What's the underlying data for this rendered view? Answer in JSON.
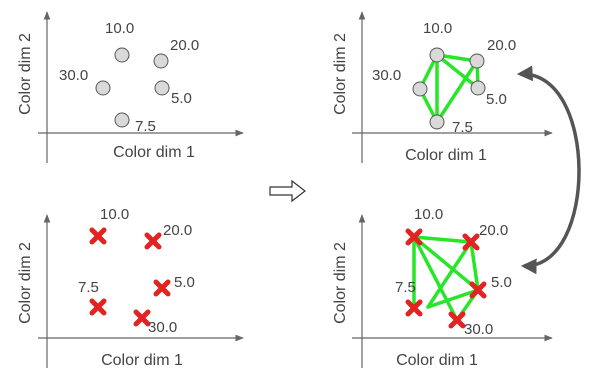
{
  "axis_labels": {
    "x": "Color dim 1",
    "y": "Color dim 2"
  },
  "panels": {
    "top_left": {
      "marker": "circle",
      "labels": [
        "10.0",
        "20.0",
        "30.0",
        "5.0",
        "7.5"
      ]
    },
    "top_right": {
      "marker": "circle",
      "labels": [
        "10.0",
        "20.0",
        "30.0",
        "5.0",
        "7.5"
      ]
    },
    "bottom_left": {
      "marker": "cross",
      "labels": [
        "10.0",
        "20.0",
        "7.5",
        "5.0",
        "30.0"
      ]
    },
    "bottom_right": {
      "marker": "cross",
      "labels": [
        "10.0",
        "20.0",
        "7.5",
        "5.0",
        "30.0"
      ]
    }
  },
  "colors": {
    "axis": "#666666",
    "circle_fill": "#d9d9d9",
    "circle_stroke": "#555555",
    "cross": "#e32222",
    "edge": "#27e627",
    "arrow": "#555555"
  },
  "icons": {
    "transition": "right-arrow-icon",
    "correspondence": "double-headed-curved-arrow-icon"
  }
}
